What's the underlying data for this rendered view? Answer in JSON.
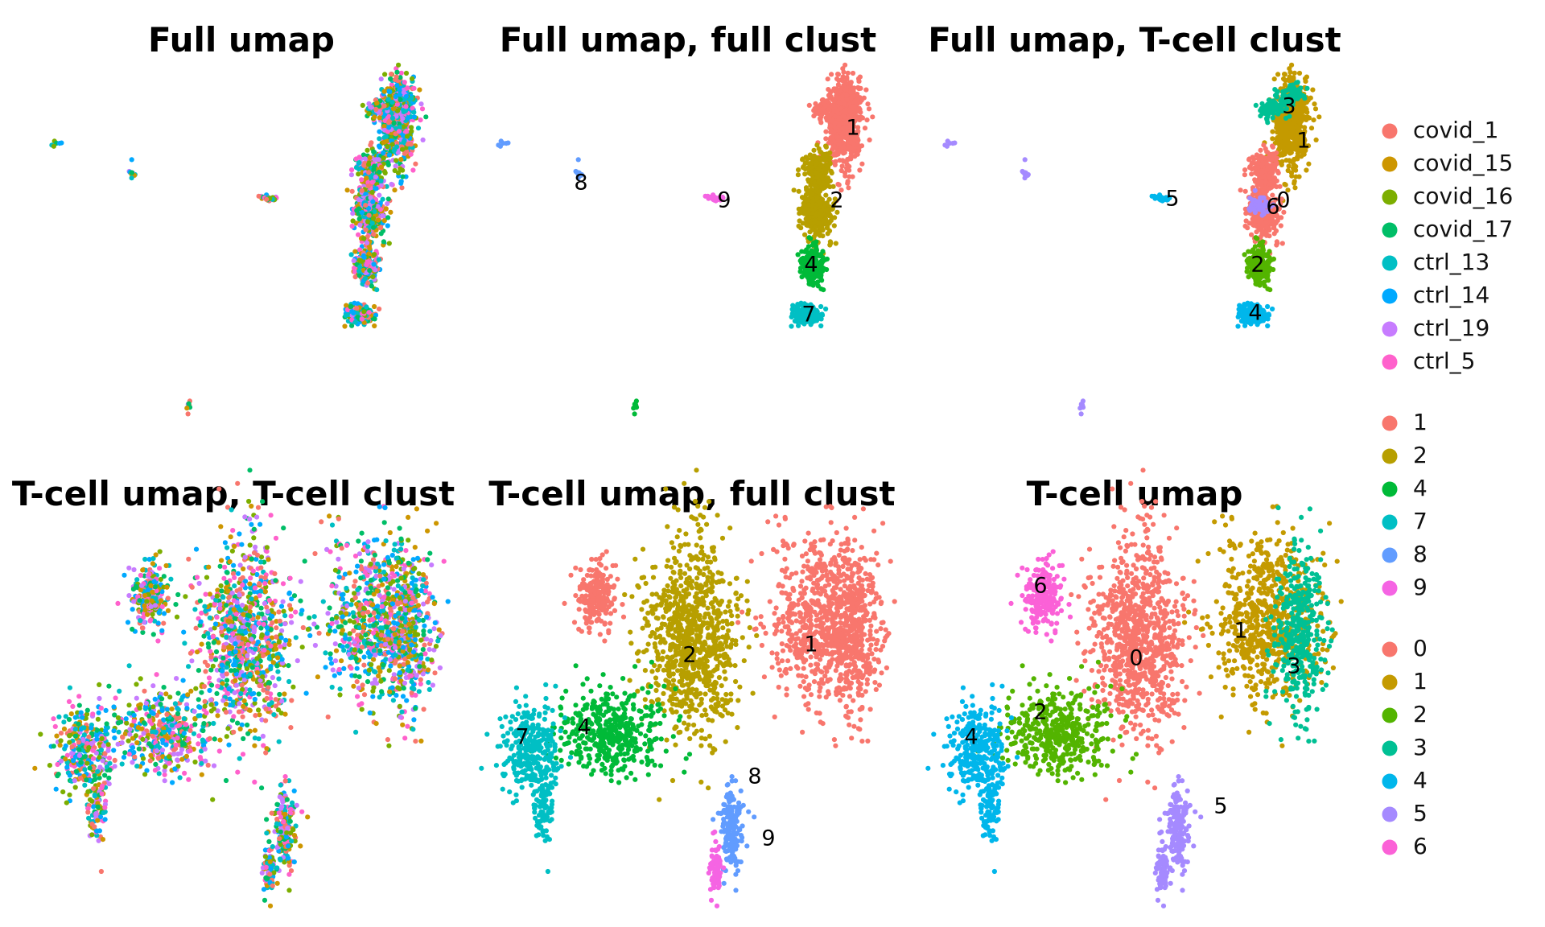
{
  "chart_data": [
    {
      "type": "scatter",
      "title": "Full umap",
      "color_by": "sample",
      "axes": "hidden",
      "grid": false,
      "cluster_labels": []
    },
    {
      "type": "scatter",
      "title": "Full umap, full clust",
      "color_by": "full_cluster",
      "axes": "hidden",
      "grid": false,
      "cluster_labels": [
        {
          "label": "1"
        },
        {
          "label": "2"
        },
        {
          "label": "4"
        },
        {
          "label": "7"
        },
        {
          "label": "8"
        },
        {
          "label": "9"
        }
      ]
    },
    {
      "type": "scatter",
      "title": "Full umap, T-cell clust",
      "color_by": "tcell_cluster",
      "axes": "hidden",
      "grid": false,
      "cluster_labels": [
        {
          "label": "3"
        },
        {
          "label": "1"
        },
        {
          "label": "0"
        },
        {
          "label": "6"
        },
        {
          "label": "5"
        },
        {
          "label": "2"
        },
        {
          "label": "4"
        }
      ]
    },
    {
      "type": "scatter",
      "title": "T-cell umap, T-cell clust",
      "color_by": "sample",
      "axes": "hidden",
      "grid": false,
      "cluster_labels": []
    },
    {
      "type": "scatter",
      "title": "T-cell umap, full clust",
      "color_by": "full_cluster",
      "axes": "hidden",
      "grid": false,
      "cluster_labels": [
        {
          "label": "2"
        },
        {
          "label": "1"
        },
        {
          "label": "4"
        },
        {
          "label": "7"
        },
        {
          "label": "8"
        },
        {
          "label": "9"
        }
      ]
    },
    {
      "type": "scatter",
      "title": "T-cell umap",
      "color_by": "tcell_cluster",
      "axes": "hidden",
      "grid": false,
      "cluster_labels": [
        {
          "label": "6"
        },
        {
          "label": "0"
        },
        {
          "label": "1"
        },
        {
          "label": "3"
        },
        {
          "label": "2"
        },
        {
          "label": "4"
        },
        {
          "label": "5"
        }
      ]
    }
  ],
  "legends": {
    "placement": "right",
    "groups": [
      {
        "key": "sample",
        "entries": [
          {
            "label": "covid_1",
            "color": "#F8766D"
          },
          {
            "label": "covid_15",
            "color": "#CD9600"
          },
          {
            "label": "covid_16",
            "color": "#7CAE00"
          },
          {
            "label": "covid_17",
            "color": "#00BE67"
          },
          {
            "label": "ctrl_13",
            "color": "#00BFC4"
          },
          {
            "label": "ctrl_14",
            "color": "#00A9FF"
          },
          {
            "label": "ctrl_19",
            "color": "#C77CFF"
          },
          {
            "label": "ctrl_5",
            "color": "#FF61CC"
          }
        ]
      },
      {
        "key": "full_cluster",
        "entries": [
          {
            "label": "1",
            "color": "#F8766D"
          },
          {
            "label": "2",
            "color": "#B79F00"
          },
          {
            "label": "4",
            "color": "#00BA38"
          },
          {
            "label": "7",
            "color": "#00BFC4"
          },
          {
            "label": "8",
            "color": "#619CFF"
          },
          {
            "label": "9",
            "color": "#F564E3"
          }
        ]
      },
      {
        "key": "tcell_cluster",
        "entries": [
          {
            "label": "0",
            "color": "#F8766D"
          },
          {
            "label": "1",
            "color": "#C49A00"
          },
          {
            "label": "2",
            "color": "#53B400"
          },
          {
            "label": "3",
            "color": "#00C094"
          },
          {
            "label": "4",
            "color": "#00B6EB"
          },
          {
            "label": "5",
            "color": "#A58AFF"
          },
          {
            "label": "6",
            "color": "#FB61D7"
          }
        ]
      }
    ]
  }
}
